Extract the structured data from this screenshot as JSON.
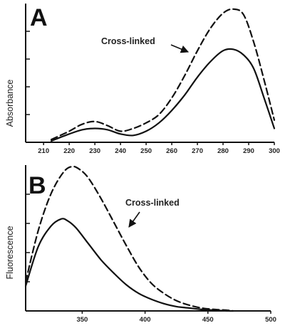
{
  "chart_data": [
    {
      "type": "line",
      "panel_label": "A",
      "title": "",
      "xlabel": "",
      "ylabel": "Absorbance",
      "xlim": [
        203,
        300
      ],
      "ylim": [
        0,
        1
      ],
      "xticks": [
        210,
        220,
        230,
        240,
        250,
        260,
        270,
        280,
        290,
        300
      ],
      "xtick_labels": [
        "210",
        "220",
        "230",
        "240",
        "250",
        "260",
        "270",
        "280",
        "290",
        "300"
      ],
      "yticks": [
        0.2,
        0.4,
        0.6,
        0.8
      ],
      "grid": false,
      "series": [
        {
          "name": "",
          "style": "solid",
          "x": [
            213,
            220,
            225,
            230,
            235,
            240,
            245,
            250,
            255,
            260,
            265,
            270,
            275,
            280,
            284,
            288,
            292,
            296,
            300
          ],
          "y": [
            0.01,
            0.06,
            0.09,
            0.1,
            0.09,
            0.06,
            0.05,
            0.08,
            0.14,
            0.23,
            0.34,
            0.47,
            0.58,
            0.66,
            0.67,
            0.63,
            0.53,
            0.32,
            0.1
          ]
        },
        {
          "name": "Cross-linked",
          "style": "dashed",
          "x": [
            213,
            220,
            225,
            230,
            235,
            240,
            245,
            250,
            255,
            260,
            265,
            270,
            275,
            280,
            284,
            288,
            292,
            296,
            300
          ],
          "y": [
            0.02,
            0.08,
            0.13,
            0.15,
            0.12,
            0.08,
            0.1,
            0.14,
            0.2,
            0.32,
            0.48,
            0.66,
            0.82,
            0.93,
            0.96,
            0.92,
            0.72,
            0.45,
            0.16
          ]
        }
      ],
      "annotations": [
        {
          "text": "Cross-linked",
          "points_to_series": "Cross-linked",
          "arrow": true
        }
      ]
    },
    {
      "type": "line",
      "panel_label": "B",
      "title": "",
      "xlabel": "",
      "ylabel": "Fluorescence",
      "xlim": [
        305,
        500
      ],
      "ylim": [
        0,
        1
      ],
      "xticks": [
        350,
        400,
        450,
        500
      ],
      "xtick_labels": [
        "350",
        "400",
        "450",
        "500"
      ],
      "yticks": [
        0.2,
        0.4,
        0.6,
        0.8
      ],
      "grid": false,
      "series": [
        {
          "name": "",
          "style": "solid",
          "x": [
            305,
            315,
            325,
            333,
            338,
            345,
            355,
            365,
            375,
            385,
            395,
            405,
            415,
            425,
            435,
            445,
            455,
            465,
            470
          ],
          "y": [
            0.17,
            0.44,
            0.58,
            0.63,
            0.62,
            0.57,
            0.46,
            0.35,
            0.26,
            0.18,
            0.12,
            0.08,
            0.05,
            0.03,
            0.02,
            0.01,
            0.005,
            0.0,
            0.0
          ]
        },
        {
          "name": "Cross-linked",
          "style": "dashed",
          "x": [
            305,
            315,
            325,
            335,
            342,
            348,
            355,
            365,
            375,
            385,
            395,
            405,
            415,
            425,
            435,
            445,
            455,
            465,
            470
          ],
          "y": [
            0.2,
            0.55,
            0.8,
            0.95,
            0.99,
            0.97,
            0.91,
            0.77,
            0.61,
            0.45,
            0.3,
            0.19,
            0.12,
            0.07,
            0.04,
            0.02,
            0.01,
            0.005,
            0.0
          ]
        }
      ],
      "annotations": [
        {
          "text": "Cross-linked",
          "points_to_series": "Cross-linked",
          "arrow": true
        }
      ]
    }
  ]
}
